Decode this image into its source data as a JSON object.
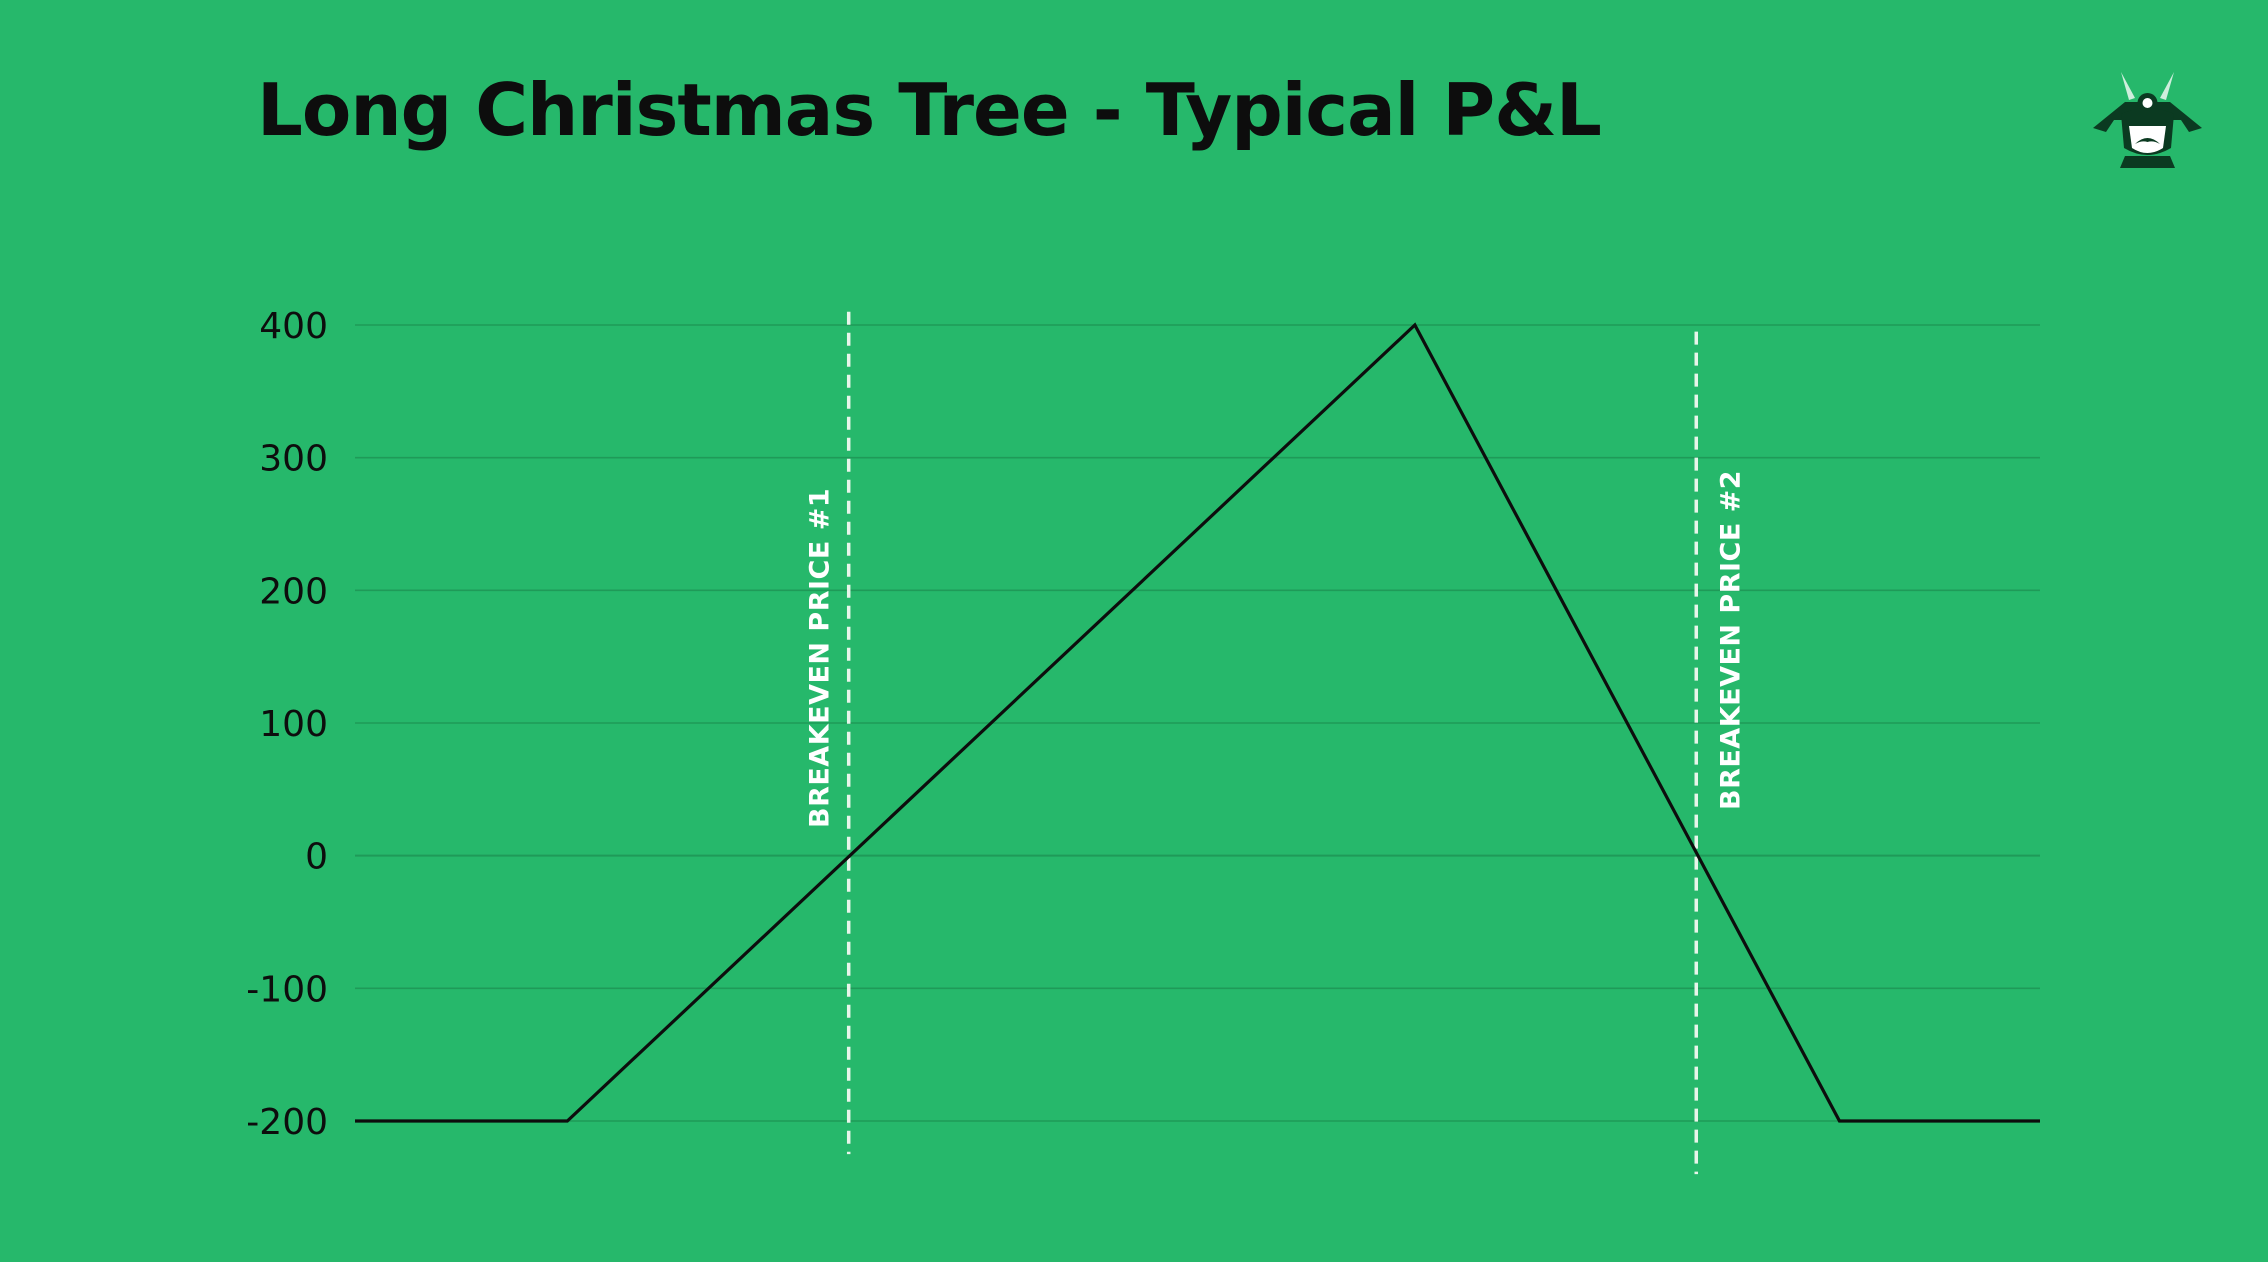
{
  "title": "Long Christmas Tree - Typical P&L",
  "colors": {
    "background": "#26b86b",
    "gridline": "#1f9a58",
    "line": "#0d0d0d",
    "breakeven": "#e8f5ea"
  },
  "logo": {
    "icon": "samurai-logo-icon"
  },
  "chart_data": {
    "type": "line",
    "title": "Long Christmas Tree - Typical P&L",
    "xlabel": "",
    "ylabel": "",
    "ylim": [
      -200,
      400
    ],
    "yticks": [
      400,
      300,
      200,
      100,
      0,
      -100,
      -200
    ],
    "ytick_labels": [
      "400",
      "300",
      "200",
      "100",
      "0",
      "-100",
      "-200"
    ],
    "xlim": [
      0,
      100
    ],
    "grid": true,
    "legend": "none",
    "series": [
      {
        "x": [
          0,
          12.6,
          62.9,
          88.1,
          100
        ],
        "y": [
          -200,
          -200,
          400,
          -200,
          -200
        ]
      }
    ],
    "annotations": [
      {
        "type": "vline",
        "x": 29.3,
        "y_top": 410,
        "y_bottom": -225,
        "label": "BREAKEVEN PRICE #1"
      },
      {
        "type": "vline",
        "x": 79.6,
        "y_top": 395,
        "y_bottom": -240,
        "label": "BREAKEVEN PRICE #2"
      }
    ]
  }
}
